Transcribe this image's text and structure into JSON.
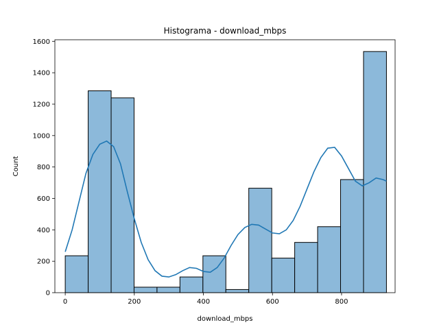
{
  "chart_data": {
    "type": "bar",
    "title": "Histograma - download_mbps",
    "xlabel": "download_mbps",
    "ylabel": "Count",
    "xlim": [
      -30,
      955
    ],
    "ylim": [
      0,
      1610
    ],
    "bin_edges": [
      0,
      66.4,
      132.9,
      199.3,
      265.7,
      332.1,
      398.6,
      465.0,
      531.4,
      597.9,
      664.3,
      730.7,
      797.1,
      863.6,
      930.0
    ],
    "values": [
      235,
      1285,
      1240,
      35,
      35,
      100,
      235,
      20,
      665,
      220,
      320,
      420,
      720,
      1535
    ],
    "kde": {
      "x": [
        0,
        20,
        40,
        60,
        80,
        100,
        120,
        140,
        160,
        180,
        200,
        220,
        240,
        260,
        280,
        300,
        320,
        340,
        360,
        380,
        400,
        420,
        440,
        460,
        480,
        500,
        520,
        540,
        560,
        580,
        600,
        620,
        640,
        660,
        680,
        700,
        720,
        740,
        760,
        780,
        800,
        820,
        840,
        860,
        880,
        900,
        920,
        930
      ],
      "y": [
        260,
        400,
        580,
        760,
        880,
        945,
        965,
        930,
        820,
        640,
        470,
        320,
        210,
        140,
        105,
        100,
        115,
        140,
        160,
        155,
        135,
        130,
        160,
        220,
        300,
        370,
        415,
        435,
        430,
        405,
        380,
        375,
        400,
        460,
        550,
        660,
        770,
        860,
        920,
        925,
        870,
        790,
        710,
        680,
        700,
        730,
        720,
        710
      ]
    },
    "xticks": [
      0,
      200,
      400,
      600,
      800
    ],
    "yticks": [
      0,
      200,
      400,
      600,
      800,
      1000,
      1200,
      1400,
      1600
    ],
    "colors": {
      "bar_fill": "#8cb9da",
      "bar_edge": "#000000",
      "kde_line": "#1f77b4"
    },
    "grid": false,
    "legend": "none"
  }
}
